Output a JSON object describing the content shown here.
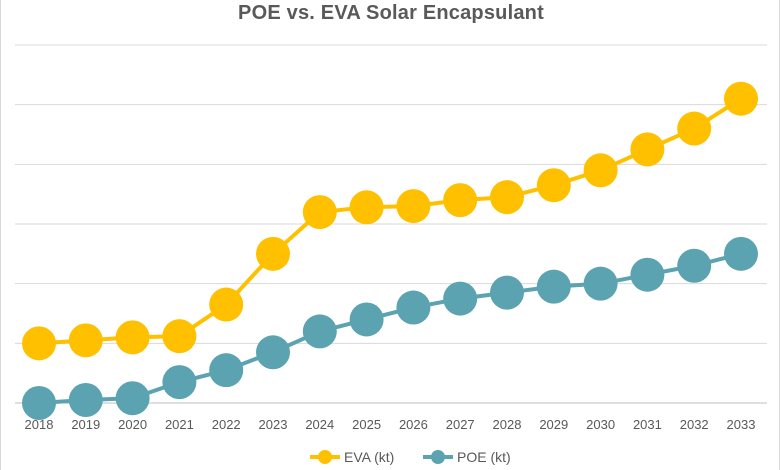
{
  "chart_data": {
    "type": "line",
    "title": "POE vs. EVA Solar Encapsulant",
    "xlabel": "",
    "ylabel": "",
    "categories": [
      "2018",
      "2019",
      "2020",
      "2021",
      "2022",
      "2023",
      "2024",
      "2025",
      "2026",
      "2027",
      "2028",
      "2029",
      "2030",
      "2031",
      "2032",
      "2033"
    ],
    "series": [
      {
        "name": "EVA (kt)",
        "color": "#FFC000",
        "values": [
          1.0,
          1.05,
          1.1,
          1.12,
          1.65,
          2.5,
          3.2,
          3.28,
          3.3,
          3.4,
          3.45,
          3.65,
          3.9,
          4.25,
          4.6,
          5.1
        ]
      },
      {
        "name": "POE (kt)",
        "color": "#5BA3B0",
        "values": [
          0.0,
          0.05,
          0.08,
          0.35,
          0.55,
          0.85,
          1.2,
          1.4,
          1.6,
          1.75,
          1.85,
          1.95,
          2.0,
          2.15,
          2.3,
          2.5
        ]
      }
    ],
    "ylim": [
      0,
      6
    ],
    "grid": true,
    "y_tick_labels_shown": false,
    "legend_position": "bottom"
  }
}
